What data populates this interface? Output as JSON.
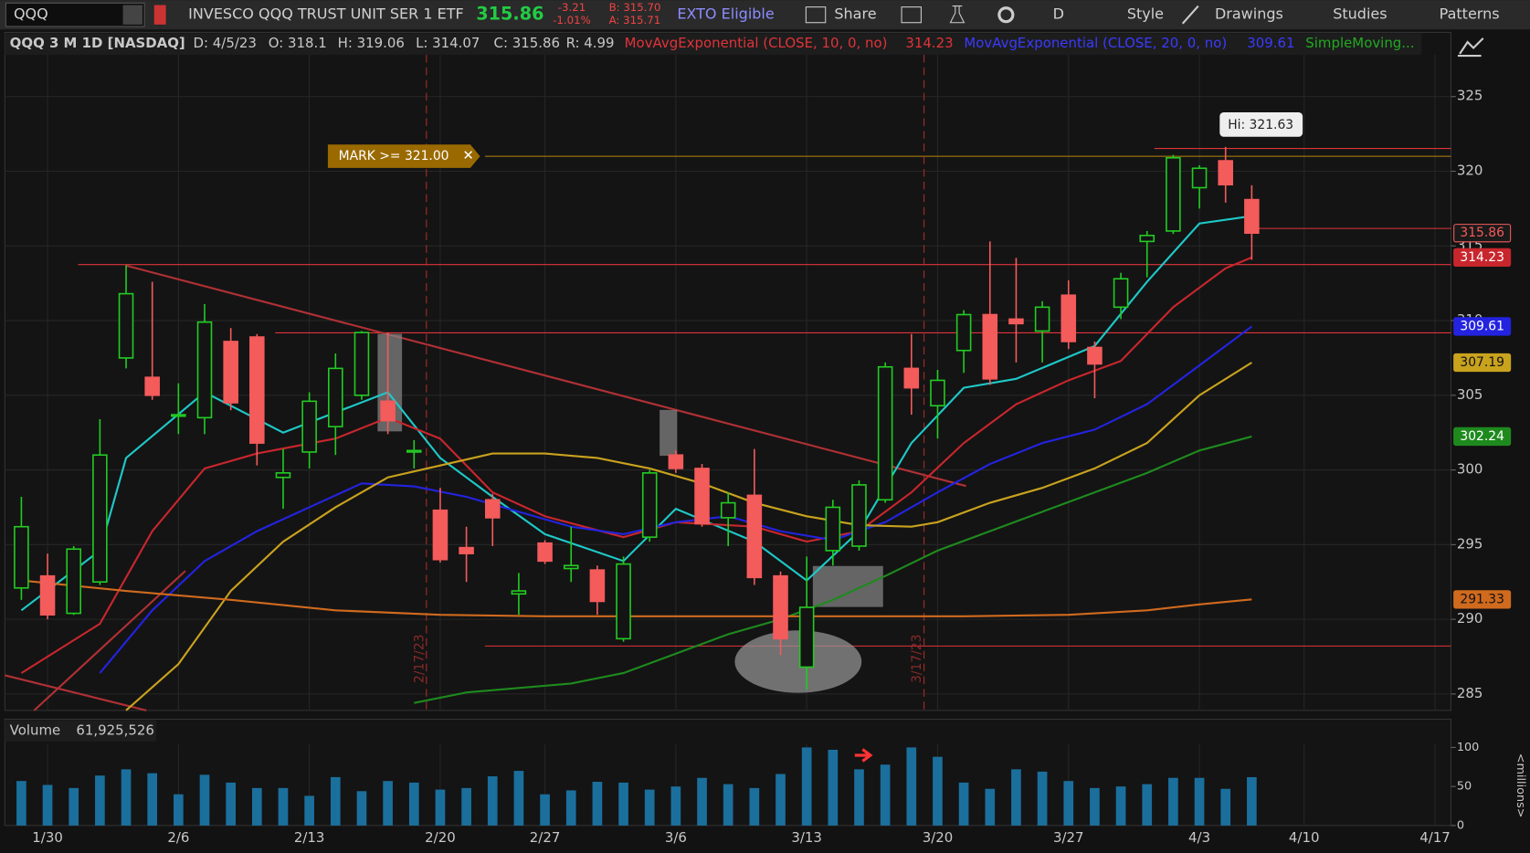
{
  "toolbar": {
    "symbol": "QQQ",
    "description": "INVESCO QQQ TRUST UNIT SER 1 ETF",
    "change": "-3.21",
    "change_pct": "-1.01%",
    "bid": "B: 315.70",
    "ask": "A: 315.71",
    "exto": "EXTO Eligible",
    "share": "Share",
    "aggregation": "D",
    "style": "Style",
    "drawings": "Drawings",
    "studies": "Studies",
    "patterns": "Patterns"
  },
  "chart_data": [
    {
      "type": "candlestick",
      "title": "QQQ 3 M 1D [NASDAQ]",
      "ohlc_header": [
        "D: 4/5/23",
        "O: 318.1",
        "H: 319.06",
        "L: 314.07",
        "C: 315.86",
        "R: 4.99"
      ],
      "up_color": "#22cc22",
      "down_color": "#f45b5b",
      "open": [
        292.1,
        292.9,
        290.4,
        292.5,
        307.5,
        306.2,
        303.6,
        303.5,
        308.6,
        308.9,
        299.5,
        301.2,
        302.9,
        305.0,
        304.6,
        301.2,
        297.3,
        294.8,
        298.0,
        291.7,
        295.1,
        293.4,
        293.3,
        288.7,
        295.5,
        301.0,
        300.1,
        296.8,
        298.3,
        292.9,
        286.8,
        294.6,
        294.9,
        298.0,
        306.8,
        304.3,
        308.0,
        310.4,
        310.1,
        309.3,
        311.7,
        308.2,
        310.9,
        315.3,
        316.0,
        318.9,
        320.7,
        318.1
      ],
      "high": [
        298.2,
        294.4,
        294.9,
        303.4,
        313.7,
        312.6,
        305.8,
        311.1,
        309.5,
        309.1,
        301.4,
        305.2,
        307.8,
        309.3,
        309.2,
        302.0,
        298.8,
        296.2,
        298.4,
        293.1,
        295.3,
        296.2,
        293.6,
        294.2,
        300.0,
        301.3,
        300.4,
        298.5,
        301.4,
        293.2,
        294.2,
        298.0,
        299.3,
        307.2,
        309.1,
        306.7,
        310.7,
        315.3,
        314.2,
        311.3,
        312.7,
        308.6,
        313.2,
        316.0,
        321.1,
        320.4,
        321.63,
        319.06
      ],
      "low": [
        291.3,
        290.0,
        290.3,
        292.3,
        306.8,
        304.7,
        302.4,
        302.4,
        304.0,
        300.3,
        297.4,
        300.1,
        301.0,
        304.7,
        302.4,
        300.1,
        293.8,
        292.5,
        294.9,
        290.3,
        293.7,
        292.5,
        290.3,
        288.5,
        295.2,
        299.8,
        296.2,
        294.9,
        292.3,
        287.6,
        285.3,
        293.6,
        294.6,
        297.8,
        303.7,
        302.1,
        306.5,
        305.7,
        307.2,
        307.2,
        308.1,
        304.8,
        310.1,
        312.9,
        315.8,
        317.5,
        317.9,
        314.07
      ],
      "close": [
        296.2,
        290.3,
        294.7,
        301.0,
        311.8,
        305.0,
        303.7,
        309.9,
        304.5,
        301.8,
        299.8,
        304.6,
        306.8,
        309.2,
        303.3,
        301.3,
        294.0,
        294.4,
        296.8,
        291.9,
        293.9,
        293.6,
        291.2,
        293.7,
        299.8,
        300.1,
        296.4,
        297.8,
        292.8,
        288.7,
        290.8,
        297.5,
        299.0,
        306.9,
        305.5,
        306.0,
        310.4,
        306.1,
        309.8,
        310.9,
        308.6,
        307.1,
        312.8,
        315.7,
        320.9,
        320.2,
        319.1,
        315.86
      ],
      "series": [
        {
          "color": "#1fc8c8",
          "x": [
            0,
            3,
            4,
            7,
            10,
            14,
            16,
            18,
            20,
            23,
            25,
            28,
            30,
            32,
            34,
            36,
            38,
            41,
            43,
            45,
            47
          ],
          "values": [
            290.6,
            294.6,
            300.8,
            305.2,
            302.5,
            305.2,
            300.8,
            298.2,
            295.7,
            293.9,
            297.4,
            295.2,
            292.6,
            295.9,
            301.8,
            305.5,
            306.1,
            308.3,
            312.6,
            316.5,
            317.0
          ]
        },
        {
          "name": "MovAvgExponential (CLOSE, 10, 0, no)",
          "color": "#c8262d",
          "x": [
            0,
            3,
            5,
            7,
            9,
            12,
            14,
            16,
            18,
            20,
            23,
            25,
            28,
            30,
            32,
            34,
            36,
            38,
            40,
            42,
            44,
            46,
            47
          ],
          "values": [
            286.4,
            289.7,
            295.9,
            300.1,
            301.1,
            302.1,
            303.5,
            302.1,
            298.5,
            296.9,
            295.5,
            296.5,
            296.2,
            295.2,
            295.9,
            298.5,
            301.8,
            304.4,
            306.0,
            307.3,
            310.9,
            313.5,
            314.23
          ]
        },
        {
          "name": "MovAvgExponential (CLOSE, 20, 0, no)",
          "color": "#2323e0",
          "x": [
            3,
            5,
            7,
            9,
            11,
            13,
            15,
            17,
            19,
            21,
            23,
            25,
            27,
            29,
            31,
            33,
            35,
            37,
            39,
            41,
            43,
            45,
            47
          ],
          "values": [
            286.4,
            290.6,
            293.9,
            295.9,
            297.5,
            299.1,
            298.9,
            298.2,
            297.2,
            296.2,
            295.7,
            296.5,
            296.9,
            295.9,
            295.3,
            296.5,
            298.5,
            300.4,
            301.8,
            302.7,
            304.4,
            307.0,
            309.61
          ]
        },
        {
          "color": "#c9a21e",
          "x": [
            4,
            6,
            8,
            10,
            12,
            14,
            16,
            18,
            20,
            22,
            24,
            26,
            28,
            30,
            32,
            34,
            35,
            37,
            39,
            41,
            43,
            45,
            47
          ],
          "values": [
            283.9,
            287.0,
            291.9,
            295.2,
            297.5,
            299.5,
            300.3,
            301.1,
            301.1,
            300.8,
            300.1,
            299.1,
            297.8,
            296.9,
            296.3,
            296.2,
            296.5,
            297.8,
            298.8,
            300.1,
            301.8,
            305.0,
            307.19
          ]
        },
        {
          "name": "SimpleMoving...",
          "color": "#1e8a1e",
          "x": [
            15,
            17,
            19,
            21,
            23,
            25,
            27,
            29,
            31,
            33,
            35,
            37,
            39,
            41,
            43,
            45,
            47
          ],
          "values": [
            284.4,
            285.1,
            285.4,
            285.7,
            286.4,
            287.7,
            289.0,
            290.0,
            291.3,
            292.9,
            294.6,
            295.9,
            297.2,
            298.5,
            299.8,
            301.3,
            302.24
          ]
        },
        {
          "color": "#d06a1e",
          "x": [
            0,
            4,
            8,
            12,
            16,
            20,
            24,
            28,
            32,
            36,
            40,
            43,
            45,
            47
          ],
          "values": [
            292.6,
            291.9,
            291.3,
            290.6,
            290.3,
            290.2,
            290.2,
            290.2,
            290.2,
            290.2,
            290.3,
            290.6,
            291.0,
            291.33
          ]
        }
      ],
      "xlim": [
        -0.63,
        54.61
      ],
      "xticks": [
        {
          "value": 1,
          "label": "1/30"
        },
        {
          "value": 6,
          "label": "2/6"
        },
        {
          "value": 11,
          "label": "2/13"
        },
        {
          "value": 16,
          "label": "2/20"
        },
        {
          "value": 20,
          "label": "2/27"
        },
        {
          "value": 25,
          "label": "3/6"
        },
        {
          "value": 30,
          "label": "3/13"
        },
        {
          "value": 35,
          "label": "3/20"
        },
        {
          "value": 40,
          "label": "3/27"
        },
        {
          "value": 45,
          "label": "4/3"
        },
        {
          "value": 49,
          "label": "4/10"
        },
        {
          "value": 54,
          "label": "4/17"
        }
      ],
      "ylim": [
        283.9,
        329.3
      ],
      "yticks": [
        285,
        290,
        295,
        300,
        305,
        310,
        315,
        320,
        325
      ],
      "grid": true,
      "annotations": {
        "alert": "MARK >= 321.00",
        "high_label": "Hi: 321.63",
        "markers": [
          "2/17/23",
          "3/17/23"
        ]
      }
    },
    {
      "type": "bar",
      "title": "Volume",
      "header_value": "61,925,526",
      "y_label": "<millions>",
      "color": "#1b6f9c",
      "values": [
        57,
        52,
        48,
        64,
        72,
        67,
        40,
        65,
        55,
        48,
        48,
        38,
        62,
        44,
        57,
        55,
        46,
        48,
        63,
        70,
        40,
        45,
        56,
        55,
        46,
        50,
        61,
        53,
        48,
        66,
        100,
        97,
        72,
        78,
        100,
        88,
        55,
        47,
        72,
        69,
        57,
        48,
        50,
        53,
        61,
        61,
        47,
        61.925526
      ],
      "ylim": [
        0,
        103.7
      ],
      "yticks": [
        0,
        50,
        100
      ]
    }
  ]
}
